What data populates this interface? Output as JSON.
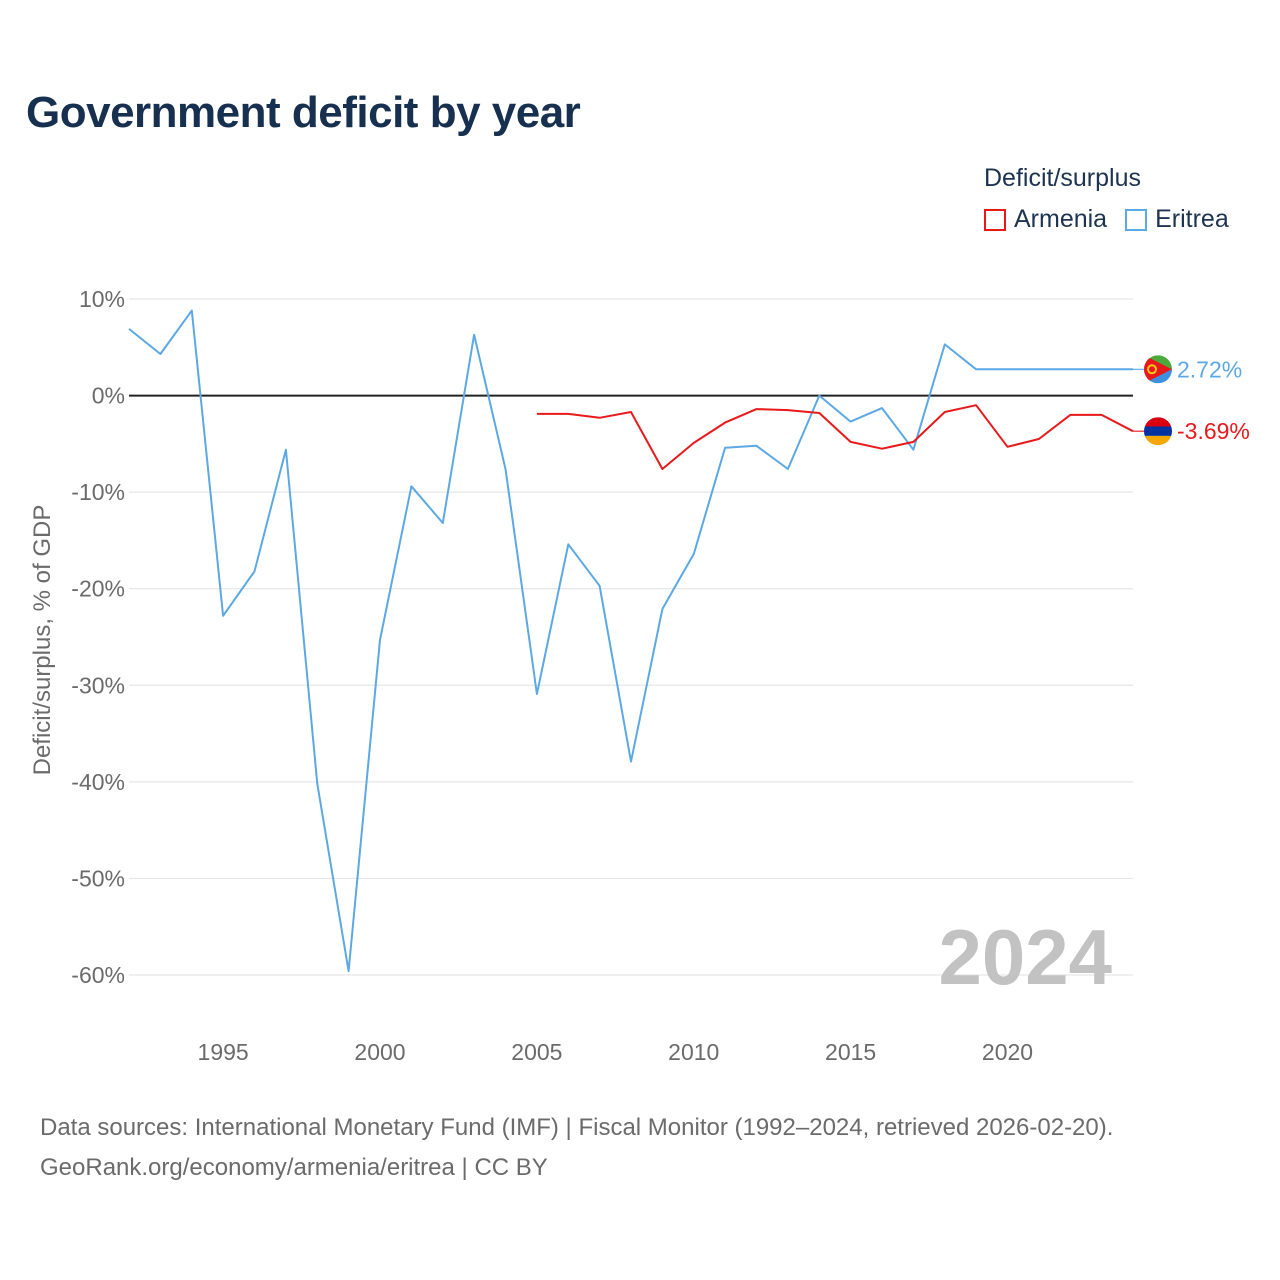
{
  "title": "Government deficit by year",
  "legend": {
    "title": "Deficit/surplus",
    "items": [
      {
        "name": "Armenia",
        "color": "#e8191b"
      },
      {
        "name": "Eritrea",
        "color": "#5ca8e4"
      }
    ]
  },
  "source": {
    "line1": "Data sources: International Monetary Fund (IMF) | Fiscal Monitor (1992–2024, retrieved 2026-02-20).",
    "line2": "GeoRank.org/economy/armenia/eritrea | CC BY"
  },
  "chart_data": {
    "type": "line",
    "title": "Government deficit by year",
    "xlabel": "",
    "ylabel": "Deficit/surplus, % of GDP",
    "xlim": [
      1992,
      2024
    ],
    "ylim": [
      -60,
      10
    ],
    "xticks": [
      1995,
      2000,
      2005,
      2010,
      2015,
      2020
    ],
    "yticks": [
      {
        "value": 10,
        "label": "10%"
      },
      {
        "value": 0,
        "label": "0%"
      },
      {
        "value": -10,
        "label": "-10%"
      },
      {
        "value": -20,
        "label": "-20%"
      },
      {
        "value": -30,
        "label": "-30%"
      },
      {
        "value": -40,
        "label": "-40%"
      },
      {
        "value": -50,
        "label": "-50%"
      },
      {
        "value": -60,
        "label": "-60%"
      }
    ],
    "current_year": "2024",
    "series": [
      {
        "name": "Eritrea",
        "color": "#5ca8e4",
        "end_label": "2.72%",
        "points": [
          [
            1992,
            6.9
          ],
          [
            1993,
            4.3
          ],
          [
            1994,
            8.8
          ],
          [
            1995,
            -22.8
          ],
          [
            1996,
            -18.2
          ],
          [
            1997,
            -5.6
          ],
          [
            1998,
            -40.2
          ],
          [
            1999,
            -59.6
          ],
          [
            2000,
            -25.3
          ],
          [
            2001,
            -9.4
          ],
          [
            2002,
            -13.2
          ],
          [
            2003,
            6.3
          ],
          [
            2004,
            -7.6
          ],
          [
            2005,
            -30.9
          ],
          [
            2006,
            -15.4
          ],
          [
            2007,
            -19.7
          ],
          [
            2008,
            -37.9
          ],
          [
            2009,
            -22.1
          ],
          [
            2010,
            -16.4
          ],
          [
            2011,
            -5.4
          ],
          [
            2012,
            -5.2
          ],
          [
            2013,
            -7.6
          ],
          [
            2014,
            0.0
          ],
          [
            2015,
            -2.7
          ],
          [
            2016,
            -1.3
          ],
          [
            2017,
            -5.6
          ],
          [
            2018,
            5.3
          ],
          [
            2019,
            2.72
          ],
          [
            2024,
            2.72
          ]
        ]
      },
      {
        "name": "Armenia",
        "color": "#e8191b",
        "end_label": "-3.69%",
        "points": [
          [
            2005,
            -1.9
          ],
          [
            2006,
            -1.9
          ],
          [
            2007,
            -2.3
          ],
          [
            2008,
            -1.7
          ],
          [
            2009,
            -7.6
          ],
          [
            2010,
            -4.9
          ],
          [
            2011,
            -2.8
          ],
          [
            2012,
            -1.4
          ],
          [
            2013,
            -1.5
          ],
          [
            2014,
            -1.8
          ],
          [
            2015,
            -4.8
          ],
          [
            2016,
            -5.5
          ],
          [
            2017,
            -4.8
          ],
          [
            2018,
            -1.7
          ],
          [
            2019,
            -1.0
          ],
          [
            2020,
            -5.3
          ],
          [
            2021,
            -4.5
          ],
          [
            2022,
            -2.0
          ],
          [
            2023,
            -2.0
          ],
          [
            2024,
            -3.69
          ]
        ]
      }
    ]
  }
}
